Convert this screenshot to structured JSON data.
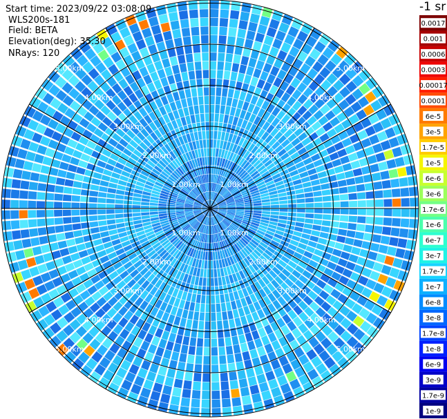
{
  "header": {
    "start_time": "Start time: 2023/09/22 03:08:09",
    "instrument": "WLS200s-181",
    "field": "Field: BETA",
    "elevation": "Elevation(deg): 35.30",
    "nrays": "NRays: 120"
  },
  "colorbar": {
    "units_title": "-1 sr",
    "labels": [
      "0.0017",
      "0.001",
      "0.0006",
      "0.0003",
      "0.00017",
      "0.0001",
      "6e-5",
      "3e-5",
      "1.7e-5",
      "1e-5",
      "6e-6",
      "3e-6",
      "1.7e-6",
      "1e-6",
      "6e-7",
      "3e-7",
      "1.7e-7",
      "1e-7",
      "6e-8",
      "3e-8",
      "1.7e-8",
      "1e-8",
      "6e-9",
      "3e-9",
      "1.7e-9",
      "1e-9"
    ],
    "colors": [
      "#7d0000",
      "#a50000",
      "#c80000",
      "#ee0000",
      "#ff1f00",
      "#ff4a00",
      "#ff7a00",
      "#ffa300",
      "#ffcc00",
      "#f5f500",
      "#c8ff2f",
      "#9cff5b",
      "#72ff85",
      "#4bffad",
      "#2dffd0",
      "#1ff3e6",
      "#17d4ff",
      "#0db0ff",
      "#008cff",
      "#0068ff",
      "#0044ff",
      "#0020ff",
      "#0000f0",
      "#0000c8",
      "#0000a0",
      "#000080"
    ]
  },
  "chart_data": {
    "type": "polar",
    "title": "",
    "range_rings_km": [
      1,
      2,
      3,
      4,
      5
    ],
    "ring_labels": [
      "1.00km",
      "2.00km",
      "3.00km",
      "4.00km",
      "5.00km"
    ],
    "n_rays": 120,
    "field": "BETA",
    "elevation_deg": 35.3,
    "start_time": "2023/09/22 03:08:09",
    "instrument": "WLS200s-181",
    "scale": "log",
    "value_range_sr-1": [
      1e-09,
      0.0017
    ]
  }
}
